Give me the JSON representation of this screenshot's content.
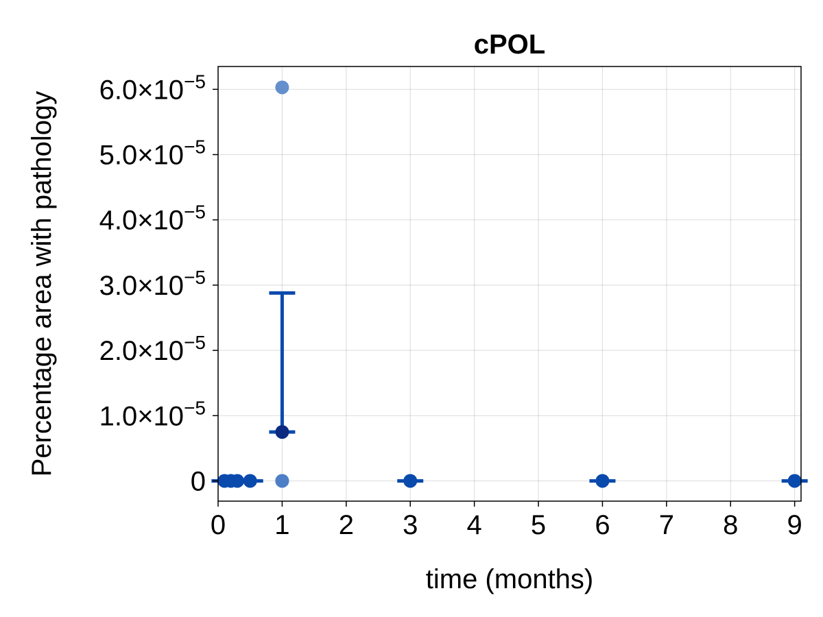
{
  "chart_data": {
    "type": "scatter",
    "title": "cPOL",
    "xlabel": "time (months)",
    "ylabel": "Percentage area with pathology",
    "xlim": [
      0,
      9.1
    ],
    "ylim": [
      -3.1e-06,
      6.35e-05
    ],
    "x_ticks": [
      0,
      1,
      2,
      3,
      4,
      5,
      6,
      7,
      8,
      9
    ],
    "x_tick_labels": [
      "0",
      "1",
      "2",
      "3",
      "4",
      "5",
      "6",
      "7",
      "8",
      "9"
    ],
    "y_ticks": [
      0,
      1e-05,
      2e-05,
      3e-05,
      4e-05,
      5e-05,
      6e-05
    ],
    "y_tick_labels": [
      {
        "mantissa": "0",
        "exp": ""
      },
      {
        "mantissa": "1.0×10",
        "exp": "−5"
      },
      {
        "mantissa": "2.0×10",
        "exp": "−5"
      },
      {
        "mantissa": "3.0×10",
        "exp": "−5"
      },
      {
        "mantissa": "4.0×10",
        "exp": "−5"
      },
      {
        "mantissa": "5.0×10",
        "exp": "−5"
      },
      {
        "mantissa": "6.0×10",
        "exp": "−5"
      }
    ],
    "grid": true,
    "colors": {
      "points": "#4a7cc4",
      "mean_marker": "#0b3a8c",
      "error_bar": "#0a4aad",
      "mean_highlight": "#0b2a80"
    },
    "points": [
      {
        "x": 0.1,
        "y": 0
      },
      {
        "x": 0.2,
        "y": 0
      },
      {
        "x": 0.3,
        "y": 0
      },
      {
        "x": 0.5,
        "y": 0
      },
      {
        "x": 1,
        "y": 0
      },
      {
        "x": 1,
        "y": 0
      },
      {
        "x": 1,
        "y": 6.03e-05
      },
      {
        "x": 3,
        "y": 0
      },
      {
        "x": 6,
        "y": 0
      },
      {
        "x": 9,
        "y": 0
      }
    ],
    "means": [
      {
        "x": 0.1,
        "y": 0,
        "lower": 0,
        "upper": 0
      },
      {
        "x": 0.2,
        "y": 0,
        "lower": 0,
        "upper": 0
      },
      {
        "x": 0.3,
        "y": 0,
        "lower": 0,
        "upper": 0
      },
      {
        "x": 0.5,
        "y": 0,
        "lower": 0,
        "upper": 0
      },
      {
        "x": 1,
        "y": 7.5e-06,
        "lower": 7.5e-06,
        "upper": 2.88e-05
      },
      {
        "x": 3,
        "y": 0,
        "lower": 0,
        "upper": 0
      },
      {
        "x": 6,
        "y": 0,
        "lower": 0,
        "upper": 0
      },
      {
        "x": 9,
        "y": 0,
        "lower": 0,
        "upper": 0
      }
    ]
  }
}
